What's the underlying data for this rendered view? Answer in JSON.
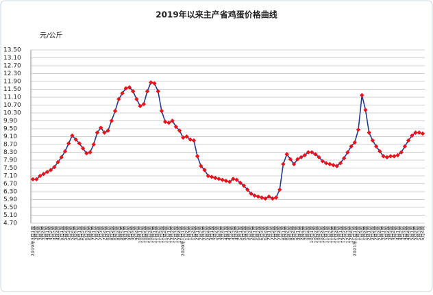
{
  "chart_data": {
    "type": "line",
    "title": "2019年以来主产省鸡蛋价格曲线",
    "y_label": "元/公斤",
    "categories": [
      "2019年3月1周",
      "3月2周",
      "3月3周",
      "3月4周",
      "4月1周",
      "4月2周",
      "4月3周",
      "4月4周",
      "5月1周",
      "5月2周",
      "5月3周",
      "5月4周",
      "5月5周",
      "6月1周",
      "6月2周",
      "6月3周",
      "6月4周",
      "7月1周",
      "7月2周",
      "7月3周",
      "7月4周",
      "8月1周",
      "8月2周",
      "8月3周",
      "8月4周",
      "8月5周",
      "9月1周",
      "9月2周",
      "9月3周",
      "9月4周",
      "10月1周",
      "10月2周",
      "10月3周",
      "10月4周",
      "11月1周",
      "11月2周",
      "11月3周",
      "11月4周",
      "12月1周",
      "12月2周",
      "12月3周",
      "12月4周",
      "2020年1月1周",
      "1月2周",
      "1月3周",
      "1月4周",
      "2月1周",
      "2月2周",
      "2月3周",
      "2月4周",
      "3月1周",
      "3月2周",
      "3月3周",
      "3月4周",
      "4月1周",
      "4月2周",
      "4月3周",
      "4月4周",
      "5月1周",
      "5月2周",
      "5月3周",
      "5月4周",
      "6月1周",
      "6月2周",
      "6月3周",
      "6月4周",
      "7月1周",
      "7月2周",
      "7月3周",
      "7月4周",
      "8月1周",
      "8月2周",
      "8月3周",
      "8月4周",
      "9月1周",
      "9月2周",
      "9月3周",
      "9月4周",
      "10月1周",
      "10月2周",
      "10月3周",
      "10月4周",
      "11月1周",
      "11月2周",
      "11月3周",
      "11月4周",
      "12月1周",
      "12月2周",
      "12月3周",
      "12月4周",
      "2021年1月1周",
      "1月2周",
      "1月3周",
      "1月4周",
      "2月1周",
      "2月2周",
      "2月3周",
      "2月4周",
      "3月1周",
      "3月2周",
      "3月3周",
      "3月4周",
      "4月1周",
      "4月2周",
      "4月3周",
      "4月4周",
      "5月1周",
      "5月2周",
      "5月3周",
      "5月4周"
    ],
    "values": [
      6.93,
      6.93,
      7.1,
      7.2,
      7.3,
      7.4,
      7.55,
      7.8,
      8.05,
      8.35,
      8.75,
      9.15,
      8.95,
      8.75,
      8.5,
      8.25,
      8.3,
      8.7,
      9.3,
      9.55,
      9.3,
      9.4,
      9.9,
      10.4,
      11.0,
      11.3,
      11.55,
      11.6,
      11.4,
      11.0,
      10.65,
      10.75,
      11.4,
      11.85,
      11.8,
      11.4,
      10.4,
      9.85,
      9.8,
      9.9,
      9.6,
      9.4,
      9.05,
      9.1,
      8.95,
      8.9,
      8.1,
      7.6,
      7.4,
      7.1,
      7.05,
      7.0,
      6.95,
      6.9,
      6.85,
      6.8,
      6.95,
      6.9,
      6.75,
      6.6,
      6.4,
      6.2,
      6.1,
      6.05,
      6.0,
      5.95,
      6.05,
      5.95,
      6.0,
      6.4,
      7.7,
      8.2,
      7.95,
      7.7,
      7.95,
      8.05,
      8.15,
      8.3,
      8.3,
      8.2,
      8.05,
      7.85,
      7.75,
      7.7,
      7.65,
      7.6,
      7.75,
      8.0,
      8.3,
      8.6,
      8.8,
      9.45,
      11.2,
      10.45,
      9.3,
      8.9,
      8.6,
      8.35,
      8.1,
      8.05,
      8.1,
      8.1,
      8.15,
      8.3,
      8.6,
      8.9,
      9.15,
      9.3,
      9.3,
      9.25
    ],
    "line_color": "#1f3a93",
    "marker_color": "#e8141a",
    "ylim": [
      4.7,
      13.5
    ],
    "yticks": [
      {
        "value": 4.7,
        "label": "4.70"
      },
      {
        "value": 5.1,
        "label": "5.10"
      },
      {
        "value": 5.5,
        "label": "5.50"
      },
      {
        "value": 5.9,
        "label": "5.90"
      },
      {
        "value": 6.3,
        "label": "6.30"
      },
      {
        "value": 6.7,
        "label": "6.70"
      },
      {
        "value": 7.1,
        "label": "7.10"
      },
      {
        "value": 7.5,
        "label": "7.50"
      },
      {
        "value": 7.9,
        "label": "7.90"
      },
      {
        "value": 8.3,
        "label": "8.30"
      },
      {
        "value": 8.7,
        "label": "8.70"
      },
      {
        "value": 9.1,
        "label": "9.10"
      },
      {
        "value": 9.5,
        "label": "9.50"
      },
      {
        "value": 9.9,
        "label": "9.90"
      },
      {
        "value": 10.3,
        "label": "10.30"
      },
      {
        "value": 10.7,
        "label": "10.70"
      },
      {
        "value": 11.1,
        "label": "11.10"
      },
      {
        "value": 11.5,
        "label": "11.50"
      },
      {
        "value": 11.9,
        "label": "11.90"
      },
      {
        "value": 12.3,
        "label": "12.30"
      },
      {
        "value": 12.7,
        "label": "12.70"
      },
      {
        "value": 13.1,
        "label": "13.10"
      },
      {
        "value": 13.5,
        "label": "13.50"
      }
    ],
    "grid": true
  }
}
